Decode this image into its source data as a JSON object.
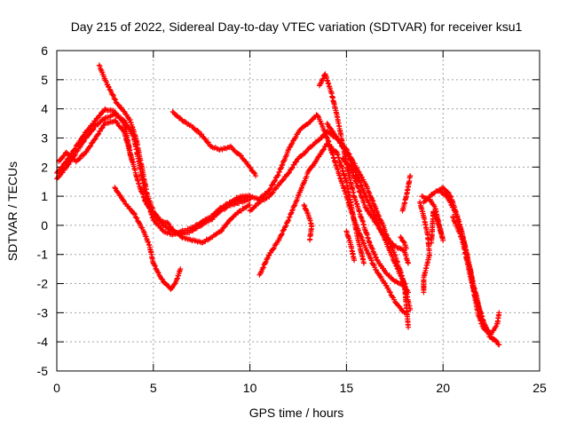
{
  "chart_data": {
    "type": "scatter",
    "title": "Day 215 of 2022, Sidereal Day-to-day VTEC variation (SDTVAR) for receiver ksu1",
    "xlabel": "GPS time / hours",
    "ylabel": "SDTVAR / TECUs",
    "xlim": [
      0,
      25
    ],
    "ylim": [
      -5,
      6
    ],
    "xticks": [
      0,
      5,
      10,
      15,
      20,
      25
    ],
    "yticks": [
      -5,
      -4,
      -3,
      -2,
      -1,
      0,
      1,
      2,
      3,
      4,
      5,
      6
    ],
    "xtick_labels": [
      "0",
      "5",
      "10",
      "15",
      "20",
      "25"
    ],
    "ytick_labels": [
      "-5",
      "-4",
      "-3",
      "-2",
      "-1",
      "0",
      "1",
      "2",
      "3",
      "4",
      "5",
      "6"
    ],
    "grid": true,
    "legend": "none",
    "marker": "+",
    "marker_color": "#ff0000",
    "series": [
      {
        "values": [
          [
            0.0,
            1.6
          ],
          [
            0.5,
            2.0
          ],
          [
            1.0,
            2.5
          ],
          [
            1.5,
            3.0
          ],
          [
            2.0,
            3.4
          ],
          [
            2.5,
            3.7
          ],
          [
            3.0,
            3.8
          ],
          [
            3.5,
            3.6
          ],
          [
            4.0,
            3.0
          ],
          [
            4.3,
            2.0
          ],
          [
            4.6,
            1.0
          ],
          [
            5.0,
            0.2
          ],
          [
            5.5,
            -0.2
          ],
          [
            6.0,
            -0.3
          ],
          [
            6.5,
            -0.2
          ],
          [
            7.0,
            -0.1
          ],
          [
            7.5,
            0.1
          ],
          [
            8.0,
            0.3
          ],
          [
            8.5,
            0.6
          ],
          [
            9.0,
            0.8
          ],
          [
            9.5,
            1.0
          ],
          [
            10.0,
            1.0
          ]
        ]
      },
      {
        "values": [
          [
            0.0,
            1.8
          ],
          [
            0.5,
            2.2
          ],
          [
            1.0,
            2.7
          ],
          [
            1.5,
            3.2
          ],
          [
            2.0,
            3.6
          ],
          [
            2.5,
            4.0
          ],
          [
            3.0,
            3.9
          ],
          [
            3.5,
            3.5
          ],
          [
            3.8,
            2.5
          ],
          [
            4.2,
            1.5
          ],
          [
            4.6,
            0.8
          ],
          [
            5.0,
            0.4
          ],
          [
            5.5,
            0.0
          ],
          [
            6.0,
            -0.2
          ],
          [
            6.5,
            -0.3
          ],
          [
            7.0,
            -0.2
          ],
          [
            7.5,
            0.0
          ],
          [
            8.0,
            0.2
          ],
          [
            8.5,
            0.5
          ],
          [
            9.0,
            0.7
          ],
          [
            9.5,
            0.8
          ],
          [
            10.0,
            0.9
          ]
        ]
      },
      {
        "values": [
          [
            0.1,
            2.2
          ],
          [
            0.5,
            2.5
          ],
          [
            1.0,
            2.2
          ],
          [
            1.5,
            2.5
          ],
          [
            2.0,
            3.0
          ],
          [
            2.5,
            3.5
          ],
          [
            3.0,
            3.6
          ],
          [
            3.5,
            3.2
          ],
          [
            3.9,
            2.2
          ]
        ]
      },
      {
        "values": [
          [
            2.2,
            5.5
          ],
          [
            2.5,
            5.0
          ],
          [
            2.8,
            4.6
          ],
          [
            3.1,
            4.2
          ],
          [
            3.5,
            3.9
          ],
          [
            3.8,
            3.6
          ],
          [
            4.1,
            3.0
          ],
          [
            4.4,
            2.0
          ],
          [
            4.7,
            1.0
          ],
          [
            5.0,
            0.5
          ],
          [
            5.3,
            0.2
          ],
          [
            5.7,
            0.1
          ],
          [
            6.1,
            -0.2
          ],
          [
            6.5,
            -0.4
          ],
          [
            7.0,
            -0.5
          ],
          [
            7.5,
            -0.6
          ],
          [
            8.0,
            -0.4
          ],
          [
            8.5,
            -0.2
          ],
          [
            9.0,
            0.2
          ],
          [
            9.5,
            0.5
          ],
          [
            10.0,
            0.7
          ]
        ]
      },
      {
        "values": [
          [
            3.0,
            1.3
          ],
          [
            3.5,
            0.8
          ],
          [
            4.0,
            0.4
          ],
          [
            4.5,
            -0.2
          ],
          [
            4.8,
            -0.7
          ],
          [
            5.0,
            -1.3
          ],
          [
            5.3,
            -1.7
          ],
          [
            5.6,
            -2.0
          ],
          [
            5.9,
            -2.2
          ],
          [
            6.2,
            -1.9
          ],
          [
            6.4,
            -1.5
          ]
        ]
      },
      {
        "values": [
          [
            6.0,
            3.9
          ],
          [
            6.5,
            3.6
          ],
          [
            7.0,
            3.4
          ],
          [
            7.5,
            3.1
          ],
          [
            8.0,
            2.7
          ],
          [
            8.5,
            2.6
          ],
          [
            9.0,
            2.7
          ],
          [
            9.5,
            2.4
          ],
          [
            10.0,
            2.0
          ],
          [
            10.3,
            1.7
          ]
        ]
      },
      {
        "values": [
          [
            9.0,
            0.8
          ],
          [
            9.5,
            0.9
          ],
          [
            10.0,
            1.0
          ],
          [
            10.5,
            0.9
          ],
          [
            11.0,
            1.2
          ],
          [
            11.5,
            1.8
          ],
          [
            12.0,
            2.6
          ],
          [
            12.5,
            3.2
          ],
          [
            13.0,
            3.5
          ],
          [
            13.5,
            3.8
          ],
          [
            14.0,
            3.0
          ],
          [
            14.5,
            2.0
          ],
          [
            15.0,
            1.0
          ],
          [
            15.5,
            0.0
          ],
          [
            16.0,
            -0.8
          ],
          [
            16.5,
            -1.5
          ],
          [
            17.0,
            -2.0
          ],
          [
            17.5,
            -2.6
          ],
          [
            18.0,
            -3.0
          ]
        ]
      },
      {
        "values": [
          [
            10.5,
            -1.7
          ],
          [
            11.0,
            -1.0
          ],
          [
            11.5,
            -0.5
          ],
          [
            12.0,
            0.2
          ],
          [
            12.5,
            1.0
          ],
          [
            13.0,
            1.8
          ],
          [
            13.5,
            2.3
          ],
          [
            14.0,
            2.8
          ],
          [
            14.5,
            2.5
          ],
          [
            15.0,
            1.5
          ],
          [
            15.3,
            0.5
          ],
          [
            15.6,
            -0.5
          ],
          [
            15.9,
            -1.3
          ]
        ]
      },
      {
        "values": [
          [
            10.0,
            0.5
          ],
          [
            10.5,
            0.8
          ],
          [
            11.0,
            1.0
          ],
          [
            11.5,
            1.4
          ],
          [
            12.0,
            1.8
          ],
          [
            12.5,
            2.3
          ],
          [
            13.0,
            2.6
          ],
          [
            13.5,
            2.9
          ],
          [
            14.0,
            3.2
          ],
          [
            14.5,
            3.0
          ],
          [
            15.0,
            2.5
          ],
          [
            15.5,
            1.8
          ],
          [
            16.0,
            1.0
          ],
          [
            16.5,
            0.3
          ],
          [
            17.0,
            -0.5
          ],
          [
            17.5,
            -1.3
          ],
          [
            18.0,
            -2.0
          ],
          [
            18.3,
            -2.9
          ]
        ]
      },
      {
        "values": [
          [
            13.6,
            4.8
          ],
          [
            13.9,
            5.2
          ],
          [
            14.2,
            4.6
          ],
          [
            14.5,
            3.8
          ],
          [
            14.8,
            2.8
          ],
          [
            15.1,
            1.8
          ],
          [
            15.4,
            1.0
          ],
          [
            15.8,
            0.2
          ],
          [
            16.2,
            -0.6
          ],
          [
            16.6,
            -1.2
          ],
          [
            17.0,
            -1.6
          ],
          [
            17.5,
            -1.9
          ],
          [
            18.0,
            -2.1
          ],
          [
            18.2,
            -2.3
          ]
        ]
      },
      {
        "values": [
          [
            14.0,
            3.5
          ],
          [
            14.5,
            3.0
          ],
          [
            15.0,
            2.6
          ],
          [
            15.5,
            2.0
          ],
          [
            16.0,
            1.4
          ],
          [
            16.5,
            0.6
          ],
          [
            17.0,
            -0.2
          ],
          [
            17.5,
            -1.0
          ],
          [
            18.0,
            -2.0
          ],
          [
            18.2,
            -3.5
          ]
        ]
      },
      {
        "values": [
          [
            12.8,
            0.7
          ],
          [
            13.0,
            0.4
          ],
          [
            13.2,
            0.0
          ],
          [
            13.1,
            -0.5
          ]
        ]
      },
      {
        "values": [
          [
            14.8,
            2.3
          ],
          [
            15.2,
            2.0
          ],
          [
            15.6,
            1.3
          ],
          [
            16.0,
            0.6
          ],
          [
            16.5,
            0.1
          ],
          [
            17.0,
            -0.4
          ],
          [
            17.5,
            -0.7
          ],
          [
            18.0,
            -0.9
          ],
          [
            18.2,
            -1.3
          ]
        ]
      },
      {
        "values": [
          [
            15.0,
            -0.2
          ],
          [
            15.2,
            -0.6
          ],
          [
            15.4,
            -1.2
          ]
        ]
      },
      {
        "values": [
          [
            17.8,
            -0.4
          ],
          [
            18.0,
            -0.6
          ],
          [
            18.1,
            -0.8
          ]
        ]
      },
      {
        "values": [
          [
            17.9,
            0.5
          ],
          [
            18.1,
            1.0
          ],
          [
            18.3,
            1.7
          ]
        ]
      },
      {
        "values": [
          [
            18.8,
            0.8
          ],
          [
            19.0,
            0.3
          ],
          [
            19.2,
            -0.3
          ],
          [
            19.3,
            -1.0
          ],
          [
            19.0,
            -1.8
          ],
          [
            19.0,
            -2.3
          ]
        ]
      },
      {
        "values": [
          [
            18.9,
            1.0
          ],
          [
            19.3,
            0.9
          ],
          [
            19.6,
            0.6
          ],
          [
            19.8,
            0.0
          ],
          [
            20.0,
            -0.5
          ],
          [
            19.7,
            0.2
          ],
          [
            19.5,
            0.5
          ],
          [
            19.4,
            -0.6
          ]
        ]
      },
      {
        "values": [
          [
            19.0,
            0.8
          ],
          [
            19.5,
            1.1
          ],
          [
            20.0,
            1.3
          ],
          [
            20.4,
            1.0
          ],
          [
            20.8,
            0.2
          ],
          [
            21.1,
            -0.6
          ],
          [
            21.4,
            -1.5
          ],
          [
            21.6,
            -2.3
          ],
          [
            21.8,
            -3.0
          ],
          [
            22.0,
            -3.4
          ],
          [
            22.2,
            -3.6
          ],
          [
            22.5,
            -3.7
          ],
          [
            22.8,
            -3.4
          ],
          [
            22.9,
            -3.0
          ]
        ]
      },
      {
        "values": [
          [
            19.8,
            1.2
          ],
          [
            20.2,
            1.0
          ],
          [
            20.6,
            0.5
          ],
          [
            21.0,
            -0.3
          ],
          [
            21.3,
            -1.2
          ],
          [
            21.6,
            -2.1
          ],
          [
            21.9,
            -2.9
          ],
          [
            22.2,
            -3.5
          ],
          [
            22.6,
            -3.9
          ],
          [
            22.9,
            -4.1
          ]
        ]
      },
      {
        "values": [
          [
            20.5,
            0.3
          ],
          [
            21.0,
            -0.5
          ],
          [
            21.5,
            -2.0
          ],
          [
            22.0,
            -3.2
          ],
          [
            22.4,
            -3.8
          ],
          [
            22.8,
            -4.0
          ]
        ]
      }
    ]
  }
}
